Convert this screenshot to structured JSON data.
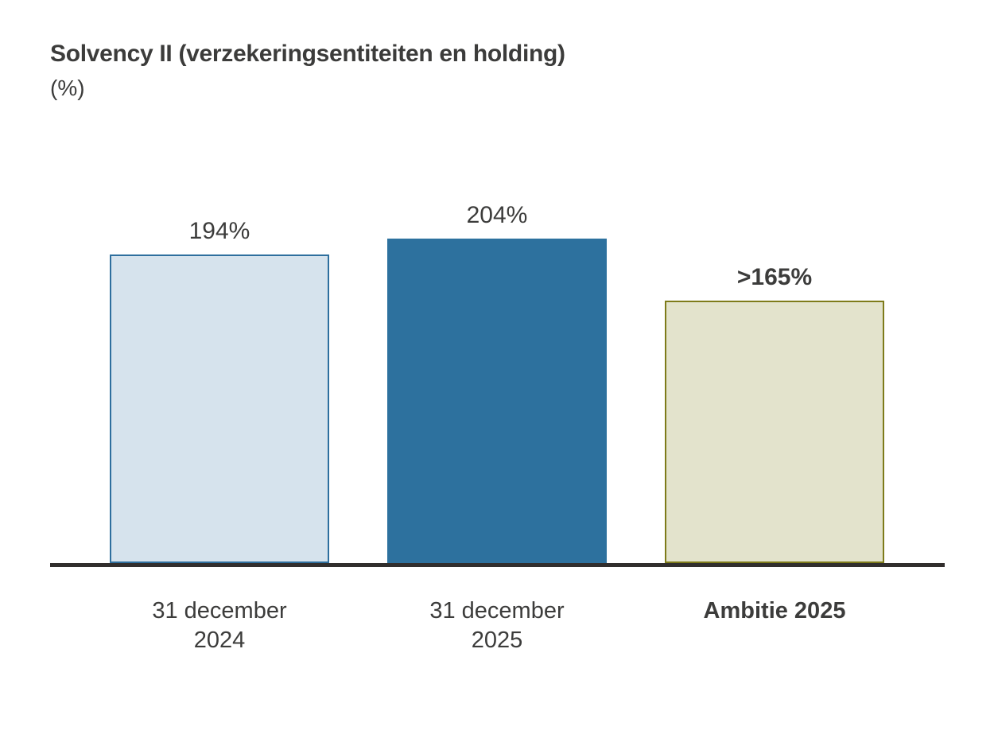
{
  "header": {
    "title": "Solvency II (verzekeringsentiteiten en holding)",
    "subtitle": "(%)"
  },
  "chart_data": {
    "type": "bar",
    "title": "Solvency II (verzekeringsentiteiten en holding)",
    "unit_label": "(%)",
    "categories": [
      "31 december 2024",
      "31 december 2025",
      "Ambitie 2025"
    ],
    "values": [
      194,
      204,
      165
    ],
    "value_labels": [
      "194%",
      "204%",
      ">165%"
    ],
    "ylim": [
      0,
      240
    ],
    "grid": false,
    "legend": false,
    "bars": [
      {
        "category_lines": [
          "31 december",
          "2024"
        ],
        "value": 194,
        "value_label": "194%",
        "fill": "#d6e3ed",
        "border": "#2e6f9e",
        "value_label_bold": false,
        "category_bold": false
      },
      {
        "category_lines": [
          "31 december",
          "2025"
        ],
        "value": 204,
        "value_label": "204%",
        "fill": "#2d719e",
        "border": "#2d719e",
        "value_label_bold": false,
        "category_bold": false
      },
      {
        "category_lines": [
          "Ambitie 2025"
        ],
        "value": 165,
        "value_label": ">165%",
        "fill": "#e3e3cc",
        "border": "#7e7b1a",
        "value_label_bold": true,
        "category_bold": true
      }
    ],
    "colors": {
      "axis_line": "#312e2d",
      "text": "#3c3c3b"
    }
  }
}
